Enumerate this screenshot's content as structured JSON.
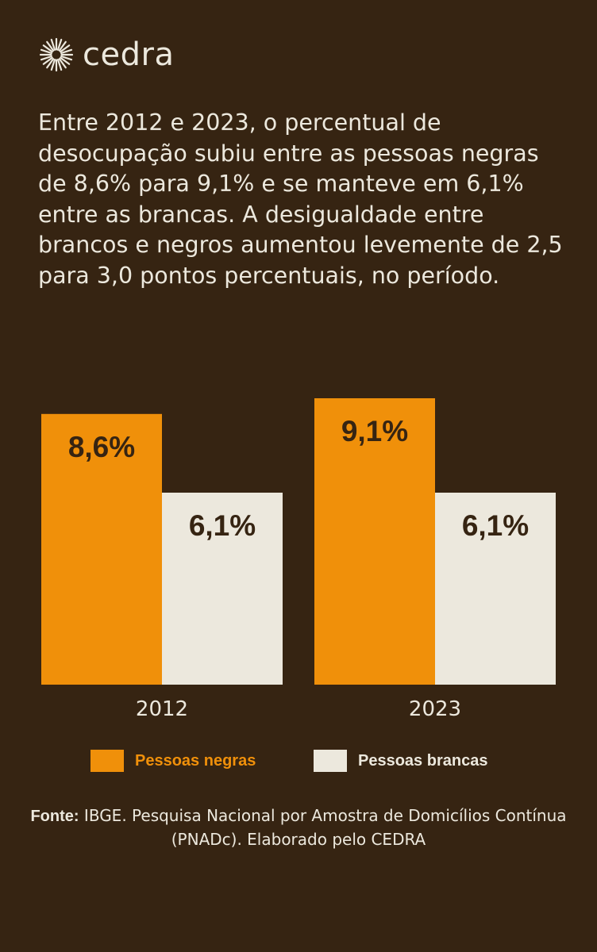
{
  "brand": {
    "name": "cedra",
    "logo_icon": "sunburst-icon",
    "text_color": "#ECE8DD"
  },
  "intro_text": "Entre 2012 e 2023, o percentual de desocupação subiu entre as pessoas negras de 8,6% para 9,1% e se manteve em 6,1% entre as brancas. A desigualdade entre brancos e negros aumentou levemente de 2,5 para 3,0 pontos percentuais, no período.",
  "colors": {
    "background": "#362412",
    "negras": "#F0900A",
    "brancas": "#ECE8DD",
    "text_light": "#ECE8DD",
    "text_dark": "#362412"
  },
  "chart_data": {
    "type": "bar",
    "categories": [
      "2012",
      "2023"
    ],
    "series": [
      {
        "name": "Pessoas negras",
        "values": [
          8.6,
          9.1
        ],
        "labels": [
          "8,6%",
          "9,1%"
        ],
        "color": "#F0900A"
      },
      {
        "name": "Pessoas brancas",
        "values": [
          6.1,
          6.1
        ],
        "labels": [
          "6,1%",
          "6,1%"
        ],
        "color": "#ECE8DD"
      }
    ],
    "ylim": [
      0,
      9.1
    ],
    "grid": false,
    "legend_position": "bottom"
  },
  "legend": [
    {
      "label": "Pessoas negras",
      "color": "#F0900A"
    },
    {
      "label": "Pessoas brancas",
      "color": "#ECE8DD"
    }
  ],
  "source": {
    "label": "Fonte:",
    "text": " IBGE. Pesquisa Nacional por Amostra de Domicílios Contínua (PNADc). Elaborado pelo CEDRA"
  }
}
